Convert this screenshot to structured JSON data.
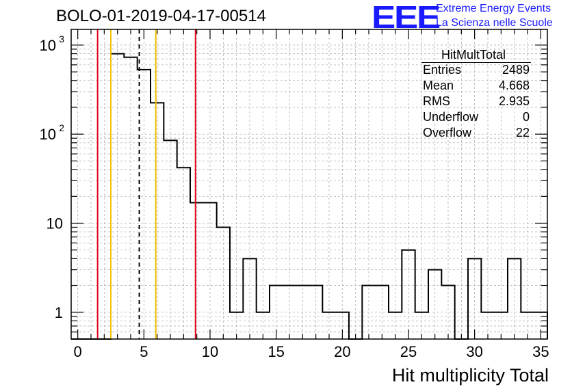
{
  "header": {
    "title": "BOLO-01-2019-04-17-00514",
    "logo": {
      "mark": "EEE",
      "line1": "Extreme Energy Events",
      "line2": "La Scienza nelle Scuole",
      "color": "#1a1aff"
    }
  },
  "stats": {
    "title": "HitMultTotal",
    "rows": [
      {
        "key": "Entries",
        "value": "2489"
      },
      {
        "key": "Mean",
        "value": "4.668"
      },
      {
        "key": "RMS",
        "value": "2.935"
      },
      {
        "key": "Underflow",
        "value": "0"
      },
      {
        "key": "Overflow",
        "value": "22"
      }
    ]
  },
  "chart_data": {
    "type": "histogram",
    "xlabel": "Hit multiplicity Total",
    "ylabel": "",
    "xlim": [
      -0.5,
      35.5
    ],
    "ylim": [
      0.5,
      1500
    ],
    "ylog": true,
    "grid": true,
    "legend_position": "top-right",
    "x_ticks": [
      0,
      5,
      10,
      15,
      20,
      25,
      30,
      35
    ],
    "y_ticks": [
      {
        "value": 1,
        "label": "1"
      },
      {
        "value": 10,
        "label": "10"
      },
      {
        "value": 100,
        "label": "10",
        "exp": "2"
      },
      {
        "value": 1000,
        "label": "10",
        "exp": "3"
      }
    ],
    "bin_width": 1,
    "bin_centers": [
      0,
      1,
      2,
      3,
      4,
      5,
      6,
      7,
      8,
      9,
      10,
      11,
      12,
      13,
      14,
      15,
      16,
      17,
      18,
      19,
      20,
      21,
      22,
      23,
      24,
      25,
      26,
      27,
      28,
      29,
      30,
      31,
      32,
      33,
      34,
      35
    ],
    "counts": [
      0,
      0,
      0,
      800,
      730,
      530,
      225,
      85,
      42,
      17,
      17,
      9,
      1,
      4,
      1,
      2,
      2,
      2,
      2,
      1,
      1,
      0,
      2,
      2,
      1,
      5,
      1,
      3,
      2,
      0,
      4,
      1,
      1,
      4,
      1,
      1
    ],
    "markers": [
      {
        "x": 1.5,
        "color": "#e0001a",
        "style": "solid"
      },
      {
        "x": 2.5,
        "color": "#f2c100",
        "style": "solid"
      },
      {
        "x": 4.65,
        "color": "#000000",
        "style": "dashed"
      },
      {
        "x": 5.9,
        "color": "#f2c100",
        "style": "solid"
      },
      {
        "x": 8.9,
        "color": "#e0001a",
        "style": "solid"
      }
    ],
    "line_color": "#000000",
    "grid_color": "#b0b0b0"
  }
}
